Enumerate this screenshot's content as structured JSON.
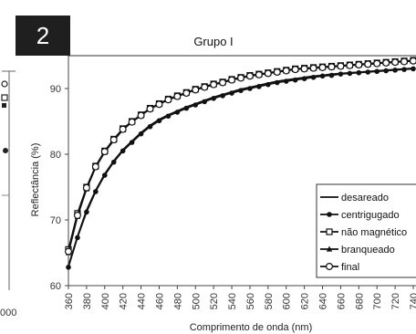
{
  "panel_label": "2",
  "chart_data": {
    "type": "line",
    "title": "Grupo I",
    "xlabel": "Comprimento de onda (nm)",
    "ylabel": "Reflectância (%)",
    "xlim": [
      360,
      740
    ],
    "ylim": [
      60,
      95
    ],
    "x_ticks": [
      360,
      380,
      400,
      420,
      440,
      460,
      480,
      500,
      520,
      540,
      560,
      580,
      600,
      620,
      640,
      660,
      680,
      700,
      720,
      740
    ],
    "y_ticks": [
      60,
      70,
      80,
      90
    ],
    "grid": false,
    "legend_position": "bottom-right",
    "left_panel_fragments": [
      "000"
    ],
    "x": [
      360,
      370,
      380,
      390,
      400,
      410,
      420,
      430,
      440,
      450,
      460,
      470,
      480,
      490,
      500,
      510,
      520,
      530,
      540,
      550,
      560,
      570,
      580,
      590,
      600,
      610,
      620,
      630,
      640,
      650,
      660,
      670,
      680,
      690,
      700,
      710,
      720,
      730,
      740
    ],
    "series": [
      {
        "name": "desareado",
        "marker": "none",
        "values": [
          63.0,
          67.5,
          71.5,
          74.5,
          77.0,
          79.0,
          80.7,
          82.0,
          83.3,
          84.4,
          85.3,
          86.0,
          86.6,
          87.2,
          87.7,
          88.2,
          88.7,
          89.1,
          89.5,
          89.9,
          90.2,
          90.5,
          90.8,
          91.1,
          91.3,
          91.5,
          91.7,
          91.9,
          92.0,
          92.2,
          92.3,
          92.4,
          92.5,
          92.6,
          92.7,
          92.8,
          92.9,
          93.0,
          93.1
        ]
      },
      {
        "name": "centrigugado",
        "marker": "filled-circle",
        "values": [
          62.8,
          67.3,
          71.2,
          74.3,
          76.8,
          78.8,
          80.5,
          81.8,
          83.1,
          84.2,
          85.1,
          85.8,
          86.4,
          87.0,
          87.5,
          88.0,
          88.5,
          88.9,
          89.3,
          89.7,
          90.0,
          90.3,
          90.6,
          90.9,
          91.1,
          91.3,
          91.5,
          91.7,
          91.9,
          92.0,
          92.2,
          92.3,
          92.4,
          92.5,
          92.6,
          92.7,
          92.8,
          92.9,
          93.0
        ]
      },
      {
        "name": "não magnético",
        "marker": "open-square",
        "values": [
          65.5,
          71.0,
          75.0,
          78.2,
          80.5,
          82.3,
          83.9,
          85.0,
          86.0,
          87.0,
          87.7,
          88.4,
          88.9,
          89.4,
          89.9,
          90.3,
          90.7,
          91.0,
          91.4,
          91.7,
          92.0,
          92.2,
          92.4,
          92.6,
          92.8,
          93.0,
          93.1,
          93.2,
          93.3,
          93.4,
          93.5,
          93.6,
          93.7,
          93.8,
          93.9,
          94.0,
          94.1,
          94.2,
          94.3
        ]
      },
      {
        "name": "branqueado",
        "marker": "filled-triangle",
        "values": [
          65.0,
          70.5,
          74.7,
          78.0,
          80.3,
          82.1,
          83.7,
          84.9,
          85.9,
          86.9,
          87.6,
          88.3,
          88.8,
          89.3,
          89.8,
          90.2,
          90.6,
          90.9,
          91.3,
          91.6,
          91.9,
          92.1,
          92.3,
          92.5,
          92.7,
          92.9,
          93.0,
          93.1,
          93.2,
          93.3,
          93.4,
          93.5,
          93.6,
          93.7,
          93.8,
          93.9,
          94.0,
          94.1,
          94.2
        ]
      },
      {
        "name": "final",
        "marker": "open-circle",
        "values": [
          65.2,
          70.7,
          74.9,
          78.1,
          80.4,
          82.2,
          83.8,
          84.9,
          85.9,
          86.9,
          87.6,
          88.3,
          88.8,
          89.3,
          89.8,
          90.2,
          90.6,
          90.9,
          91.3,
          91.6,
          91.9,
          92.1,
          92.3,
          92.5,
          92.7,
          92.9,
          93.0,
          93.1,
          93.2,
          93.3,
          93.4,
          93.5,
          93.6,
          93.7,
          93.8,
          93.9,
          94.0,
          94.1,
          94.2
        ]
      }
    ],
    "colors": {
      "line": "#111111",
      "axis": "#444444",
      "badge_bg": "#1f1f1f",
      "badge_fg": "#ffffff"
    }
  }
}
